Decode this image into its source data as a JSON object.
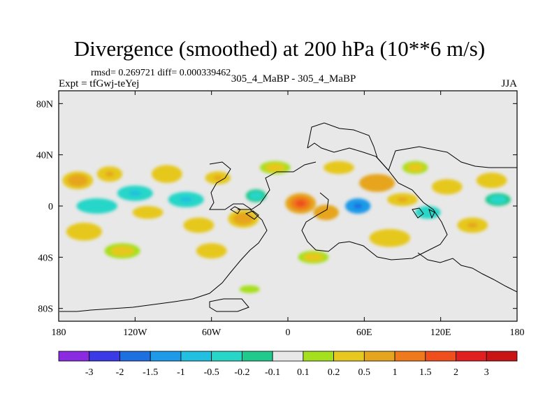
{
  "title": "Divergence (smoothed) at 200 hPa (10**6 m/s)",
  "stats": "rmsd= 0.269721 diff= 0.000339462",
  "experiment": "Expt = tfGwj-teYej",
  "subtitle": "305_4_MaBP - 305_4_MaBP",
  "season": "JJA",
  "chart_data": {
    "type": "heatmap",
    "title": "Divergence (smoothed) at 200 hPa (10**6 m/s)",
    "x_range": [
      -180,
      180
    ],
    "y_range": [
      -90,
      90
    ],
    "x_ticks": [
      {
        "v": -180,
        "label": "180"
      },
      {
        "v": -120,
        "label": "120W"
      },
      {
        "v": -60,
        "label": "60W"
      },
      {
        "v": 0,
        "label": "0"
      },
      {
        "v": 60,
        "label": "60E"
      },
      {
        "v": 120,
        "label": "120E"
      },
      {
        "v": 180,
        "label": "180"
      }
    ],
    "y_ticks": [
      {
        "v": 80,
        "label": "80N"
      },
      {
        "v": 40,
        "label": "40N"
      },
      {
        "v": 0,
        "label": "0"
      },
      {
        "v": -40,
        "label": "40S"
      },
      {
        "v": -80,
        "label": "80S"
      }
    ],
    "colorbar": {
      "labels": [
        "-3",
        "-2",
        "-1.5",
        "-1",
        "-0.5",
        "-0.2",
        "-0.1",
        "0.1",
        "0.2",
        "0.5",
        "1",
        "1.5",
        "2",
        "3"
      ],
      "colors": [
        "#8a2be2",
        "#3a3ae6",
        "#1e6fe0",
        "#1f9ae8",
        "#22bfe0",
        "#28d6c8",
        "#22c98c",
        "#e8e8e8",
        "#a5e01f",
        "#e6c81e",
        "#e6a51f",
        "#ee7a1d",
        "#ee4f1d",
        "#e02020",
        "#c81414"
      ]
    },
    "blobs": [
      {
        "lon": -165,
        "lat": 20,
        "rx": 12,
        "ry": 7,
        "v": 0.7
      },
      {
        "lon": -150,
        "lat": 0,
        "rx": 16,
        "ry": 6,
        "v": -0.4
      },
      {
        "lon": -160,
        "lat": -20,
        "rx": 14,
        "ry": 7,
        "v": 0.4
      },
      {
        "lon": -140,
        "lat": 25,
        "rx": 10,
        "ry": 6,
        "v": 0.6
      },
      {
        "lon": -120,
        "lat": 10,
        "rx": 14,
        "ry": 6,
        "v": -0.6
      },
      {
        "lon": -110,
        "lat": -5,
        "rx": 12,
        "ry": 5,
        "v": 0.4
      },
      {
        "lon": -95,
        "lat": 25,
        "rx": 12,
        "ry": 7,
        "v": 0.5
      },
      {
        "lon": -80,
        "lat": 5,
        "rx": 14,
        "ry": 6,
        "v": -0.5
      },
      {
        "lon": -70,
        "lat": -15,
        "rx": 12,
        "ry": 6,
        "v": 0.4
      },
      {
        "lon": -55,
        "lat": 22,
        "rx": 10,
        "ry": 5,
        "v": 0.6
      },
      {
        "lon": -35,
        "lat": -10,
        "rx": 12,
        "ry": 7,
        "v": 0.7
      },
      {
        "lon": -25,
        "lat": 8,
        "rx": 8,
        "ry": 5,
        "v": -0.3
      },
      {
        "lon": -130,
        "lat": -35,
        "rx": 14,
        "ry": 6,
        "v": 0.3
      },
      {
        "lon": -60,
        "lat": -35,
        "rx": 12,
        "ry": 6,
        "v": 0.5
      },
      {
        "lon": 10,
        "lat": 2,
        "rx": 12,
        "ry": 8,
        "v": 1.6
      },
      {
        "lon": 30,
        "lat": -5,
        "rx": 10,
        "ry": 6,
        "v": 0.9
      },
      {
        "lon": 55,
        "lat": 0,
        "rx": 10,
        "ry": 6,
        "v": -1.8
      },
      {
        "lon": 70,
        "lat": 18,
        "rx": 14,
        "ry": 7,
        "v": 1.0
      },
      {
        "lon": 90,
        "lat": 5,
        "rx": 12,
        "ry": 5,
        "v": 0.6
      },
      {
        "lon": 80,
        "lat": -25,
        "rx": 16,
        "ry": 7,
        "v": 0.5
      },
      {
        "lon": 110,
        "lat": -5,
        "rx": 10,
        "ry": 5,
        "v": -0.4
      },
      {
        "lon": 125,
        "lat": 15,
        "rx": 12,
        "ry": 6,
        "v": 0.4
      },
      {
        "lon": 145,
        "lat": -15,
        "rx": 12,
        "ry": 6,
        "v": 0.6
      },
      {
        "lon": 160,
        "lat": 20,
        "rx": 12,
        "ry": 6,
        "v": 0.5
      },
      {
        "lon": 165,
        "lat": 5,
        "rx": 10,
        "ry": 5,
        "v": -0.3
      },
      {
        "lon": 100,
        "lat": 30,
        "rx": 10,
        "ry": 5,
        "v": 0.3
      },
      {
        "lon": -10,
        "lat": 30,
        "rx": 12,
        "ry": 5,
        "v": 0.3
      },
      {
        "lon": 40,
        "lat": 30,
        "rx": 12,
        "ry": 5,
        "v": 0.4
      },
      {
        "lon": 20,
        "lat": -40,
        "rx": 12,
        "ry": 5,
        "v": 0.3
      },
      {
        "lon": -30,
        "lat": -65,
        "rx": 8,
        "ry": 3,
        "v": 0.2
      }
    ]
  }
}
